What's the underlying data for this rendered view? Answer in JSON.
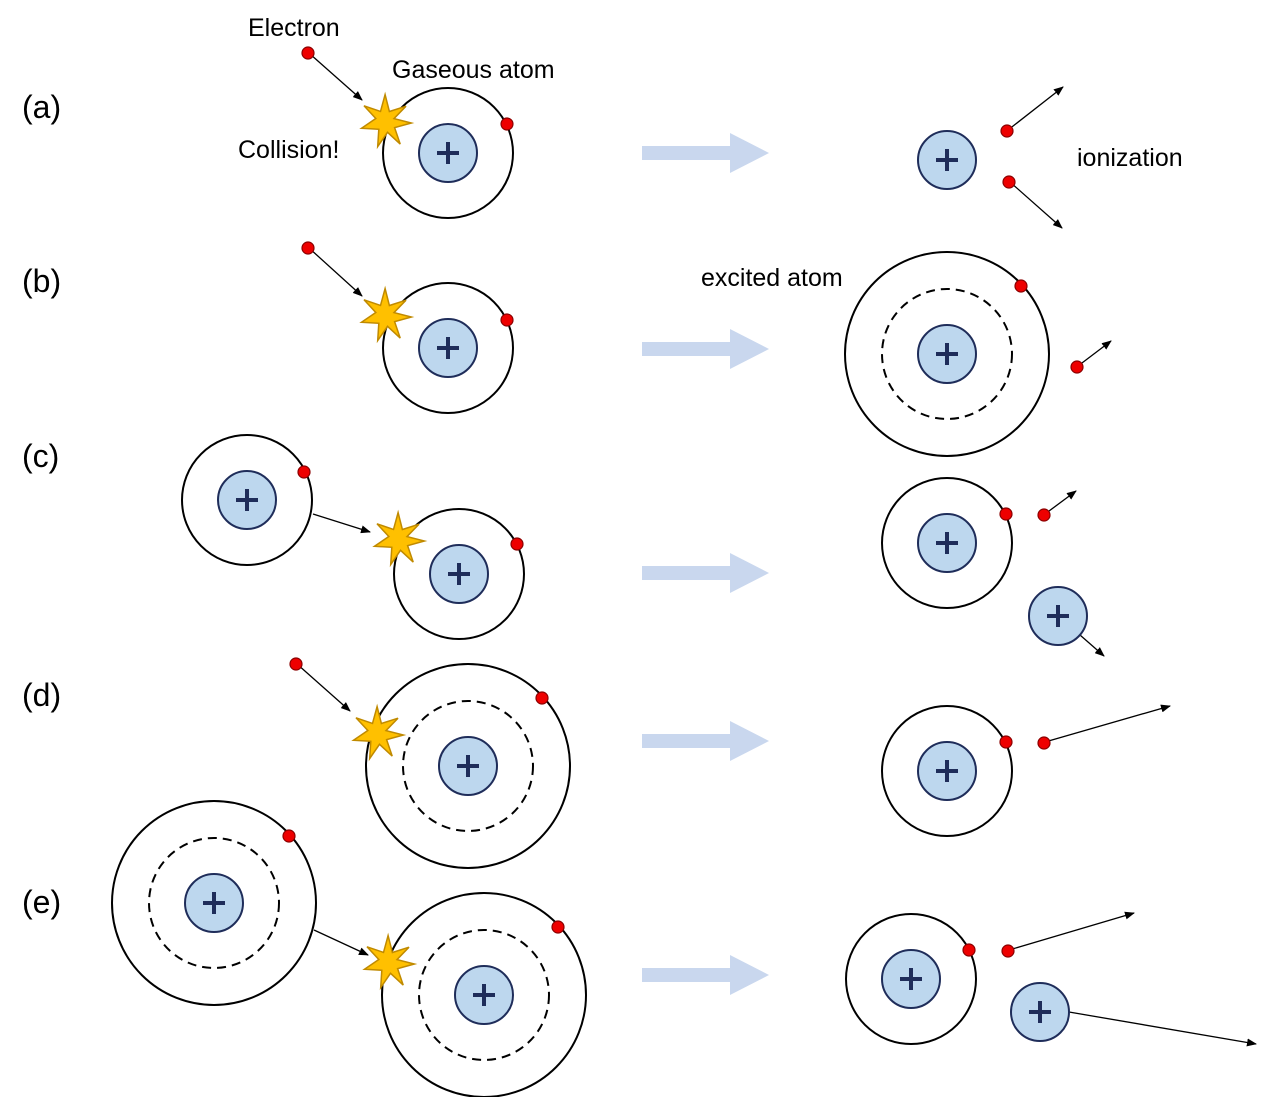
{
  "labels": {
    "electron": "Electron",
    "gaseous_atom": "Gaseous atom",
    "collision": "Collision!",
    "ionization": "ionization",
    "excited_atom": "excited atom"
  },
  "rows": [
    {
      "id": "a",
      "label": "(a)"
    },
    {
      "id": "b",
      "label": "(b)"
    },
    {
      "id": "c",
      "label": "(c)"
    },
    {
      "id": "d",
      "label": "(d)"
    },
    {
      "id": "e",
      "label": "(e)"
    }
  ],
  "nucleus_symbol": "+",
  "colors": {
    "electron": "#ee0000",
    "nucleus_fill": "#bdd7ee",
    "nucleus_stroke": "#1f2d5a",
    "collision_star": "#ffc000",
    "process_arrow": "#c9d7ee"
  }
}
